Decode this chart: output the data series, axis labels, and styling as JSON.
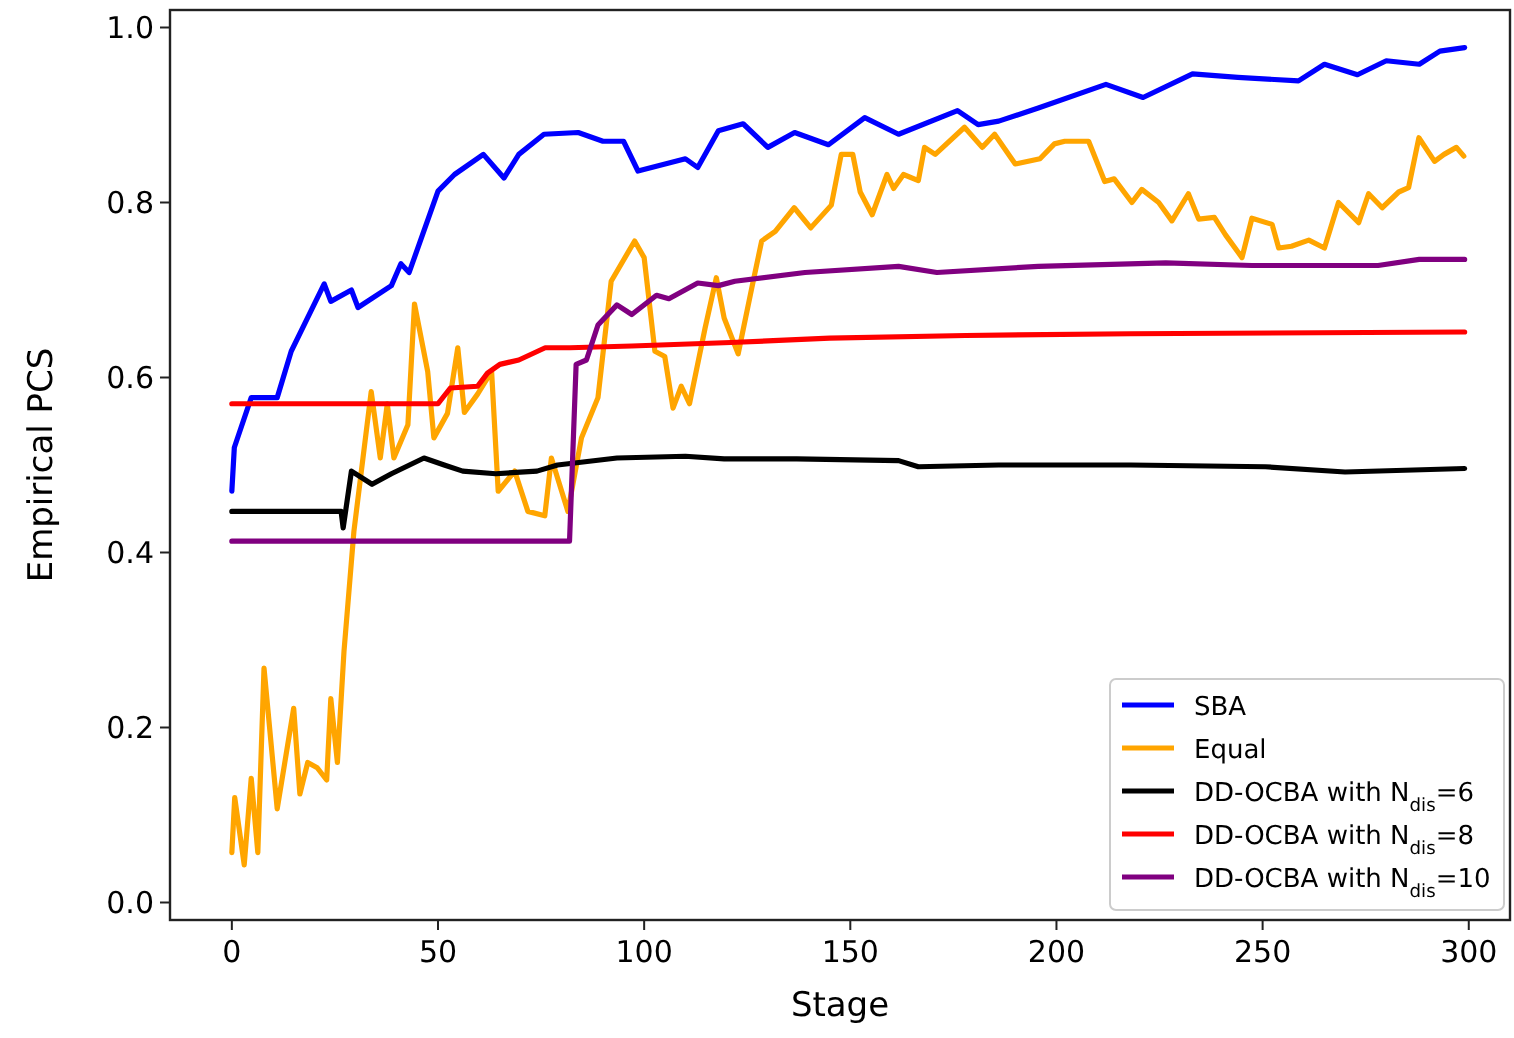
{
  "chart_data": {
    "type": "line",
    "xlabel": "Stage",
    "ylabel": "Empirical PCS",
    "xlim": [
      -15,
      310
    ],
    "ylim": [
      -0.02,
      1.02
    ],
    "xticks": [
      0,
      50,
      100,
      150,
      200,
      250,
      300
    ],
    "yticks": [
      {
        "value": 0,
        "label": "0.0"
      },
      {
        "value": 0.2,
        "label": "0.2"
      },
      {
        "value": 0.4,
        "label": "0.4"
      },
      {
        "value": 0.6,
        "label": "0.6"
      },
      {
        "value": 0.8,
        "label": "0.8"
      },
      {
        "value": 1,
        "label": "1.0"
      }
    ],
    "grid": false,
    "legend": "bottom right",
    "line_style": "solid",
    "marker": "none",
    "series": [
      {
        "name": "SBA",
        "color": "#0000ff",
        "x": [
          0,
          0.6,
          4.7,
          11,
          14.4,
          22.4,
          24,
          29,
          30.6,
          38.7,
          41,
          43,
          50,
          54,
          61,
          66,
          69.6,
          75.7,
          84,
          90,
          95,
          98.5,
          110,
          113,
          118,
          124,
          130,
          136.5,
          144.7,
          153.5,
          161.7,
          176,
          181,
          186,
          195.6,
          212,
          221,
          233,
          244,
          258.7,
          265,
          273,
          280,
          288,
          293,
          299
        ],
        "values": [
          0.47,
          0.52,
          0.577,
          0.577,
          0.63,
          0.707,
          0.687,
          0.7,
          0.68,
          0.705,
          0.73,
          0.72,
          0.813,
          0.832,
          0.855,
          0.828,
          0.855,
          0.878,
          0.88,
          0.87,
          0.87,
          0.836,
          0.85,
          0.84,
          0.882,
          0.89,
          0.863,
          0.88,
          0.866,
          0.897,
          0.878,
          0.905,
          0.889,
          0.893,
          0.908,
          0.935,
          0.92,
          0.947,
          0.943,
          0.939,
          0.958,
          0.946,
          0.962,
          0.958,
          0.973,
          0.977
        ]
      },
      {
        "name": "Equal",
        "color": "#ffa500",
        "x": [
          0,
          0.7,
          3,
          4.7,
          6.3,
          7.8,
          11,
          15,
          16.5,
          18.4,
          20.7,
          23,
          24,
          25.6,
          27.2,
          29.6,
          33.8,
          36,
          37.7,
          39.3,
          42.7,
          44.3,
          47.5,
          49,
          52.3,
          54.8,
          56.4,
          59.6,
          63,
          64.6,
          68.6,
          71.8,
          75.9,
          77.5,
          81.5,
          84.8,
          88.8,
          92,
          97.7,
          100,
          102.6,
          105,
          107,
          109,
          111,
          114.8,
          117.5,
          119.4,
          122.8,
          126,
          128.5,
          131.8,
          136.4,
          140.4,
          145.4,
          147.8,
          150.6,
          152.4,
          155.3,
          158.9,
          160.5,
          162.9,
          166.5,
          168,
          170.6,
          177.7,
          182,
          185,
          190,
          196,
          199.5,
          202,
          207.8,
          211.7,
          214,
          218.3,
          220.7,
          224.8,
          228,
          232,
          234.5,
          238.3,
          241,
          245,
          247.4,
          252.3,
          253.9,
          257,
          261.2,
          265,
          268.4,
          273.3,
          275.7,
          279,
          283,
          285.4,
          287.9,
          291.7,
          294,
          297,
          298.8
        ],
        "values": [
          0.057,
          0.12,
          0.043,
          0.142,
          0.057,
          0.268,
          0.107,
          0.222,
          0.124,
          0.16,
          0.154,
          0.14,
          0.233,
          0.16,
          0.287,
          0.424,
          0.584,
          0.508,
          0.57,
          0.508,
          0.546,
          0.684,
          0.607,
          0.531,
          0.559,
          0.634,
          0.56,
          0.581,
          0.607,
          0.47,
          0.493,
          0.447,
          0.442,
          0.508,
          0.447,
          0.531,
          0.577,
          0.71,
          0.756,
          0.737,
          0.63,
          0.624,
          0.565,
          0.59,
          0.57,
          0.657,
          0.714,
          0.668,
          0.627,
          0.7,
          0.756,
          0.767,
          0.794,
          0.771,
          0.797,
          0.855,
          0.855,
          0.812,
          0.786,
          0.832,
          0.816,
          0.832,
          0.825,
          0.863,
          0.855,
          0.886,
          0.863,
          0.878,
          0.844,
          0.85,
          0.867,
          0.87,
          0.87,
          0.824,
          0.827,
          0.8,
          0.815,
          0.8,
          0.779,
          0.81,
          0.781,
          0.783,
          0.763,
          0.737,
          0.782,
          0.775,
          0.748,
          0.75,
          0.757,
          0.748,
          0.8,
          0.777,
          0.81,
          0.794,
          0.812,
          0.817,
          0.874,
          0.847,
          0.855,
          0.863,
          0.853
        ]
      },
      {
        "name": "DD-OCBA with N$_{dis}$=6",
        "color": "#000000",
        "x": [
          0,
          26.5,
          27,
          29,
          34,
          38.7,
          46.6,
          51.5,
          56,
          64,
          74,
          79,
          93.4,
          110,
          119.4,
          137,
          161.7,
          166.5,
          186,
          218,
          250.7,
          270,
          299
        ],
        "values": [
          0.447,
          0.447,
          0.428,
          0.493,
          0.478,
          0.49,
          0.508,
          0.5,
          0.493,
          0.49,
          0.493,
          0.5,
          0.508,
          0.51,
          0.507,
          0.507,
          0.505,
          0.498,
          0.5,
          0.5,
          0.498,
          0.492,
          0.496
        ]
      },
      {
        "name": "DD-OCBA with N$_{dis}$=8",
        "color": "#ff0000",
        "x": [
          0,
          50,
          53,
          59.6,
          62,
          65,
          69.6,
          76,
          82,
          97,
          121,
          145,
          178,
          218,
          299
        ],
        "values": [
          0.57,
          0.57,
          0.588,
          0.59,
          0.605,
          0.615,
          0.62,
          0.634,
          0.634,
          0.636,
          0.64,
          0.645,
          0.648,
          0.65,
          0.652
        ]
      },
      {
        "name": "DD-OCBA with N$_{dis}$=10",
        "color": "#800080",
        "x": [
          0,
          81.9,
          83.5,
          86,
          88.8,
          93.4,
          97,
          103,
          106,
          113,
          118,
          122,
          139,
          161.7,
          171,
          195.6,
          226.5,
          247.4,
          278,
          288,
          299
        ],
        "values": [
          0.413,
          0.413,
          0.615,
          0.62,
          0.66,
          0.683,
          0.672,
          0.694,
          0.69,
          0.708,
          0.705,
          0.71,
          0.72,
          0.727,
          0.72,
          0.727,
          0.731,
          0.728,
          0.728,
          0.735,
          0.735
        ]
      }
    ]
  }
}
